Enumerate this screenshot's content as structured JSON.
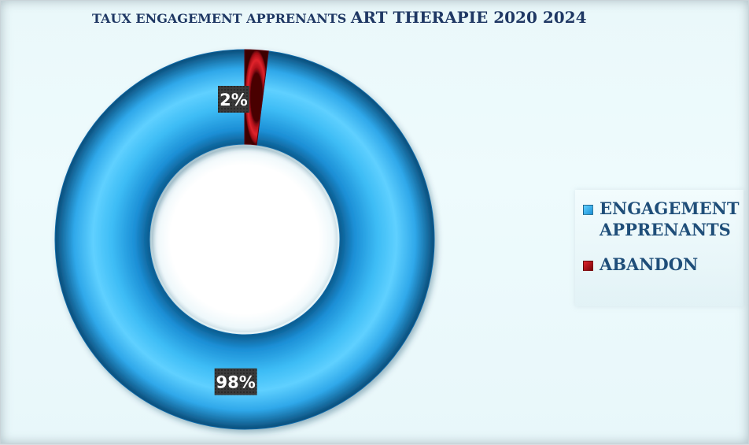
{
  "chart_data": {
    "type": "donut",
    "title_part1": "TAUX ENGAGEMENT APPRENANTS ",
    "title_part2": "ART THERAPIE 2020 2024",
    "categories": [
      "ENGAGEMENT APPRENANTS",
      "ABANDON"
    ],
    "values": [
      98,
      2
    ],
    "data_labels": [
      "98%",
      "2%"
    ],
    "colors": [
      "#29aef2",
      "#c0121b"
    ],
    "legend_position": "right"
  }
}
